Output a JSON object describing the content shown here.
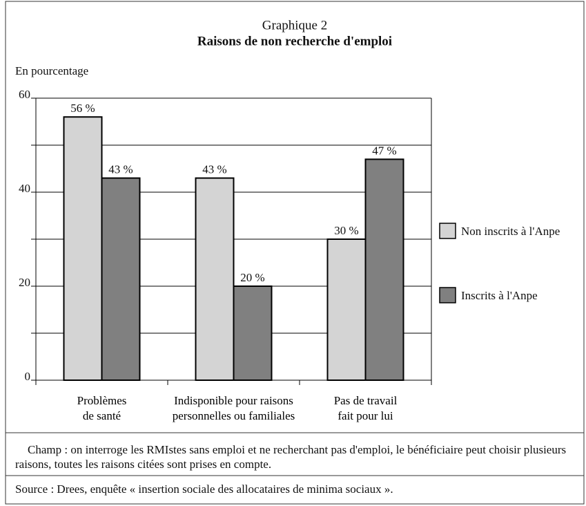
{
  "chart_data": {
    "type": "bar",
    "title": "Graphique 2",
    "subtitle": "Raisons de non recherche d'emploi",
    "y_label": "En pourcentage",
    "categories": [
      "Problèmes\nde santé",
      "Indisponible pour raisons\npersonnelles ou familiales",
      "Pas de travail\nfait pour lui"
    ],
    "series": [
      {
        "name": "Non inscrits à l'Anpe",
        "color": "#d4d4d4",
        "values": [
          56,
          43,
          30
        ],
        "value_labels": [
          "56 %",
          "43 %",
          "30 %"
        ]
      },
      {
        "name": "Inscrits à l'Anpe",
        "color": "#808080",
        "values": [
          43,
          20,
          47
        ],
        "value_labels": [
          "43 %",
          "20 %",
          "47 %"
        ]
      }
    ],
    "ylim": [
      0,
      60
    ],
    "yticks": [
      0,
      20,
      40,
      60
    ],
    "minor_yticks": [
      10,
      30,
      50
    ],
    "grid": true,
    "legend": "right",
    "notes": [
      "Champ : on interroge les RMIstes sans emploi et ne recherchant pas d'emploi, le bénéficiaire peut choisir plusieurs raisons, toutes les raisons citées sont prises en compte.",
      "Source : Drees, enquête « insertion sociale des allocataires de minima sociaux »."
    ]
  }
}
